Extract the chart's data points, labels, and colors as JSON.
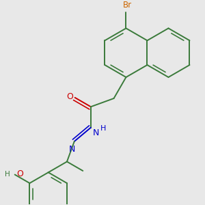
{
  "bg_color": "#e8e8e8",
  "bond_color": "#3a7a3a",
  "br_color": "#cc6600",
  "o_color": "#cc0000",
  "n_color": "#0000cc",
  "lw": 1.4,
  "dbo": 0.018,
  "figsize": [
    3.0,
    3.0
  ],
  "dpi": 100,
  "xlim": [
    0.0,
    3.0
  ],
  "ylim": [
    0.0,
    3.0
  ]
}
